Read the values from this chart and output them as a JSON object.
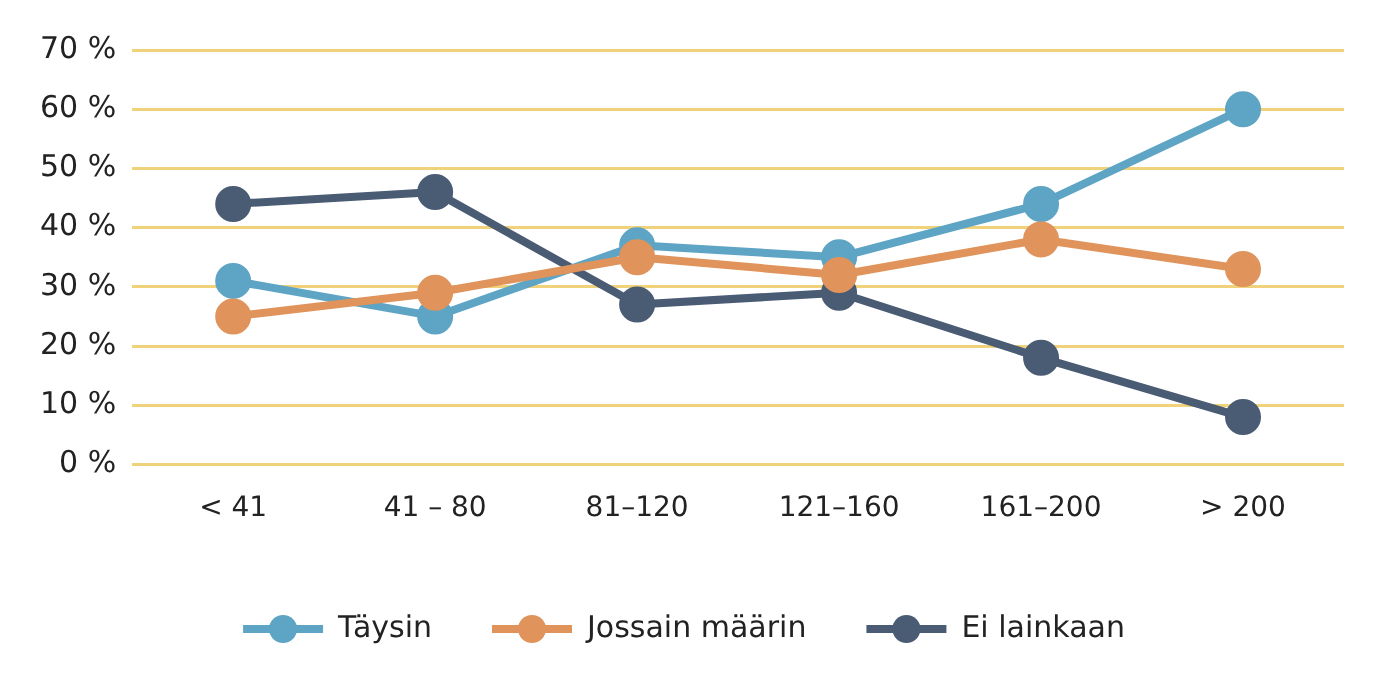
{
  "chart_data": {
    "type": "line",
    "categories": [
      "< 41",
      "41 – 80",
      "81–120",
      "121–160",
      "161–200",
      "> 200"
    ],
    "series": [
      {
        "name": "Täysin",
        "color": "#5ea4c4",
        "values": [
          31,
          25,
          37,
          35,
          44,
          60
        ]
      },
      {
        "name": "Jossain määrin",
        "color": "#e0935a",
        "values": [
          25,
          29,
          35,
          32,
          38,
          33
        ]
      },
      {
        "name": "Ei lainkaan",
        "color": "#4a5b74",
        "values": [
          44,
          46,
          27,
          29,
          18,
          8
        ]
      }
    ],
    "ylim": [
      0,
      70
    ],
    "yticks": [
      {
        "value": 0,
        "label": "0 %"
      },
      {
        "value": 10,
        "label": "10 %"
      },
      {
        "value": 20,
        "label": "20 %"
      },
      {
        "value": 30,
        "label": "30 %"
      },
      {
        "value": 40,
        "label": "40 %"
      },
      {
        "value": 50,
        "label": "50 %"
      },
      {
        "value": 60,
        "label": "60 %"
      },
      {
        "value": 70,
        "label": "70 %"
      }
    ],
    "grid": "y",
    "legend": "bottom",
    "marker": "circle",
    "line_style": "solid"
  }
}
